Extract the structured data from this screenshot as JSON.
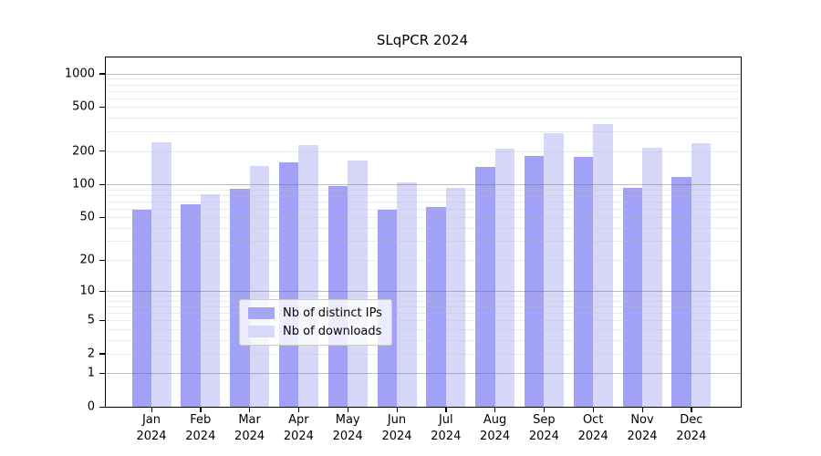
{
  "chart_data": {
    "type": "bar",
    "title": "SLqPCR 2024",
    "categories": [
      "Jan",
      "Feb",
      "Mar",
      "Apr",
      "May",
      "Jun",
      "Jul",
      "Aug",
      "Sep",
      "Oct",
      "Nov",
      "Dec"
    ],
    "category_year": "2024",
    "series": [
      {
        "name": "Nb of distinct IPs",
        "color": "#a6a6f6",
        "bar_rgba": "rgba(145,145,246,0.85)",
        "values": [
          58,
          66,
          91,
          157,
          97,
          58,
          62,
          144,
          180,
          178,
          93,
          117
        ]
      },
      {
        "name": "Nb of downloads",
        "color": "#d8d8f8",
        "bar_rgba": "rgba(208,208,248,0.85)",
        "values": [
          240,
          81,
          147,
          228,
          163,
          104,
          93,
          210,
          291,
          352,
          214,
          235
        ]
      }
    ],
    "yticks": [
      0,
      1,
      2,
      5,
      10,
      20,
      50,
      100,
      200,
      500,
      1000
    ],
    "ygrid_major": [
      1,
      10,
      100,
      1000
    ],
    "ygrid_minor": [
      2,
      3,
      4,
      5,
      6,
      7,
      8,
      9,
      20,
      30,
      40,
      50,
      60,
      70,
      80,
      90,
      200,
      300,
      400,
      500,
      600,
      700,
      800,
      900
    ],
    "xlabel": "",
    "ylabel": "",
    "yscale": "log1p",
    "ylim": [
      0,
      1400
    ],
    "grid": "horizontal major+minor",
    "legend_position": "lower center inside"
  }
}
